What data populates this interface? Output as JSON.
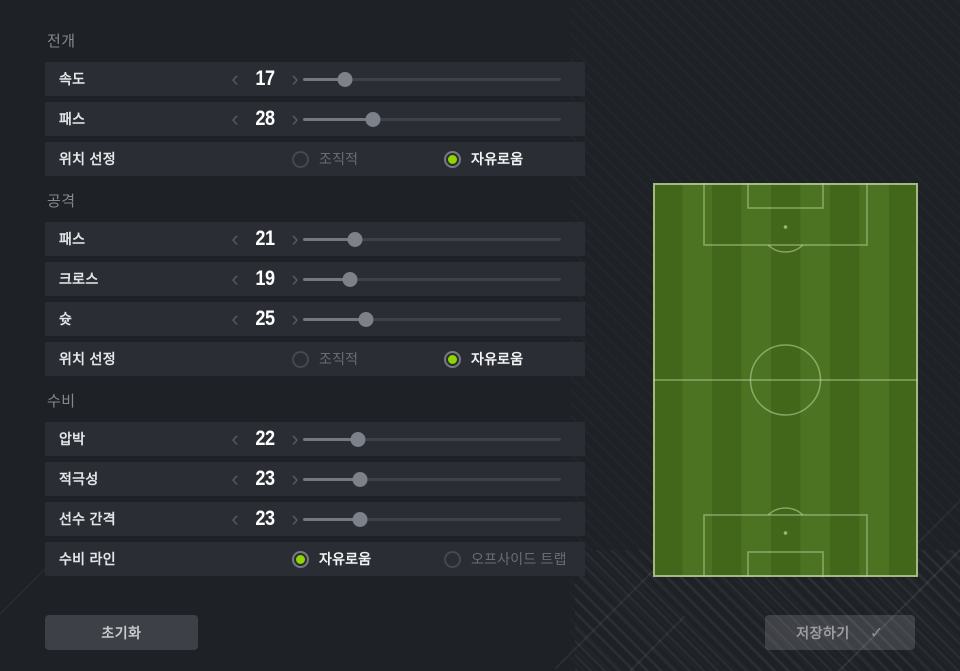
{
  "panel": {
    "sections": [
      {
        "title": "전개",
        "rows": [
          {
            "type": "slider",
            "label": "속도",
            "value": 17,
            "min": 1,
            "max": 100
          },
          {
            "type": "slider",
            "label": "패스",
            "value": 28,
            "min": 1,
            "max": 100
          },
          {
            "type": "radio",
            "label": "위치 선정",
            "options": [
              {
                "label": "조직적",
                "selected": false
              },
              {
                "label": "자유로움",
                "selected": true
              }
            ]
          }
        ]
      },
      {
        "title": "공격",
        "rows": [
          {
            "type": "slider",
            "label": "패스",
            "value": 21,
            "min": 1,
            "max": 100
          },
          {
            "type": "slider",
            "label": "크로스",
            "value": 19,
            "min": 1,
            "max": 100
          },
          {
            "type": "slider",
            "label": "슛",
            "value": 25,
            "min": 1,
            "max": 100
          },
          {
            "type": "radio",
            "label": "위치 선정",
            "options": [
              {
                "label": "조직적",
                "selected": false
              },
              {
                "label": "자유로움",
                "selected": true
              }
            ]
          }
        ]
      },
      {
        "title": "수비",
        "rows": [
          {
            "type": "slider",
            "label": "압박",
            "value": 22,
            "min": 1,
            "max": 100
          },
          {
            "type": "slider",
            "label": "적극성",
            "value": 23,
            "min": 1,
            "max": 100
          },
          {
            "type": "slider",
            "label": "선수 간격",
            "value": 23,
            "min": 1,
            "max": 100
          },
          {
            "type": "radio",
            "label": "수비 라인",
            "options": [
              {
                "label": "자유로움",
                "selected": true
              },
              {
                "label": "오프사이드 트랩",
                "selected": false
              }
            ]
          }
        ]
      }
    ]
  },
  "buttons": {
    "reset_label": "초기화",
    "save_label": "저장하기"
  },
  "icons": {
    "decrease": "‹",
    "increase": "›",
    "check": "✓"
  },
  "colors": {
    "accent_green": "#90d400",
    "page_bg": "#1e2126",
    "row_bg": "#2a2d33",
    "pitch_light": "#4c7322",
    "pitch_dark": "#43671a",
    "pitch_line": "#c2d6a4"
  }
}
